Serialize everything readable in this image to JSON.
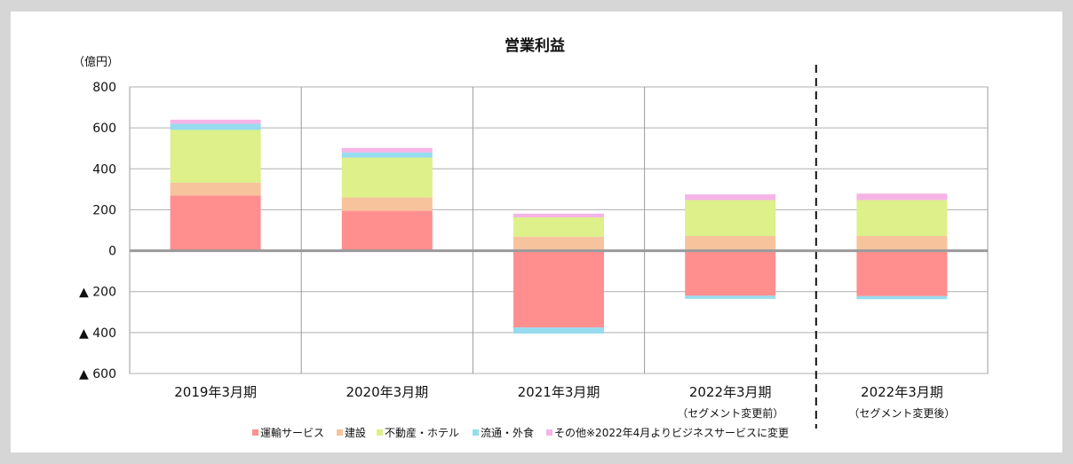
{
  "chart_data": {
    "type": "bar",
    "stacked": true,
    "title": "営業利益",
    "unit_label": "（億円）",
    "categories": [
      "2019年3月期",
      "2020年3月期",
      "2021年3月期",
      "2022年3月期",
      "2022年3月期"
    ],
    "category_notes": [
      "",
      "",
      "",
      "（セグメント変更前）",
      "（セグメント変更後）"
    ],
    "ylim": [
      -600,
      800
    ],
    "yticks": [
      800,
      600,
      400,
      200,
      0,
      -200,
      -400,
      -600
    ],
    "ytick_labels": [
      "800",
      "600",
      "400",
      "200",
      "0",
      "▲ 200",
      "▲ 400",
      "▲ 600"
    ],
    "grid": true,
    "divider_after_category_index": 3,
    "legend_position": "bottom",
    "series": [
      {
        "name": "運輸サービス",
        "color": "#ff8f8f",
        "values": [
          270,
          195,
          -375,
          -220,
          -222
        ]
      },
      {
        "name": "建設",
        "color": "#f7c39c",
        "values": [
          62,
          65,
          68,
          72,
          72
        ]
      },
      {
        "name": "不動産・ホテル",
        "color": "#ddf08a",
        "values": [
          258,
          195,
          95,
          175,
          175
        ]
      },
      {
        "name": "流通・外食",
        "color": "#96dcee",
        "values": [
          30,
          25,
          -30,
          -15,
          -15
        ]
      },
      {
        "name": "その他※2022年4月よりビジネスサービスに変更",
        "color": "#f5b4e6",
        "values": [
          20,
          22,
          18,
          28,
          32
        ]
      }
    ]
  }
}
